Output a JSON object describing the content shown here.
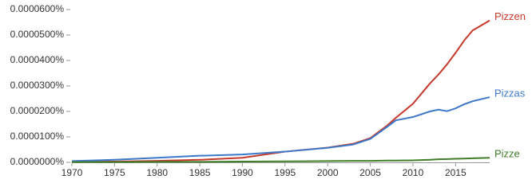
{
  "chart_data": {
    "type": "line",
    "x": [
      1970,
      1975,
      1980,
      1985,
      1990,
      1995,
      2000,
      2003,
      2005,
      2007,
      2008,
      2010,
      2012,
      2013,
      2014,
      2015,
      2016,
      2017,
      2019
    ],
    "series": [
      {
        "name": "Pizzen",
        "color": "#c5392c",
        "values": [
          2e-07,
          3e-07,
          6e-07,
          1e-06,
          1.8e-06,
          4.2e-06,
          5.8e-06,
          7.3e-06,
          9.5e-06,
          1.45e-05,
          1.75e-05,
          2.3e-05,
          3.1e-05,
          3.45e-05,
          3.85e-05,
          4.3e-05,
          4.78e-05,
          5.18e-05,
          5.57e-05
        ]
      },
      {
        "name": "Pizzas",
        "color": "#3d78c8",
        "values": [
          5e-07,
          1e-06,
          1.8e-06,
          2.6e-06,
          3.1e-06,
          4.2e-06,
          5.7e-06,
          7e-06,
          9.2e-06,
          1.4e-05,
          1.65e-05,
          1.78e-05,
          2e-05,
          2.07e-05,
          2.01e-05,
          2.12e-05,
          2.28e-05,
          2.4e-05,
          2.56e-05
        ]
      },
      {
        "name": "Pizze",
        "color": "#3f7d27",
        "values": [
          1e-07,
          1e-07,
          2e-07,
          2e-07,
          3e-07,
          4e-07,
          5e-07,
          6e-07,
          6e-07,
          7e-07,
          7e-07,
          8e-07,
          1e-06,
          1.2e-06,
          1.3e-06,
          1.4e-06,
          1.5e-06,
          1.6e-06,
          1.8e-06
        ]
      }
    ],
    "xlim": [
      1970,
      2019
    ],
    "xticks": [
      1970,
      1975,
      1980,
      1985,
      1990,
      1995,
      2000,
      2005,
      2010,
      2015
    ],
    "ylim": [
      0,
      6e-05
    ],
    "yticks": [
      {
        "value": 0,
        "label": "0.0000000%"
      },
      {
        "value": 1e-05,
        "label": "0.0000100%"
      },
      {
        "value": 2e-05,
        "label": "0.0000200%"
      },
      {
        "value": 3e-05,
        "label": "0.0000300%"
      },
      {
        "value": 4e-05,
        "label": "0.0000400%"
      },
      {
        "value": 5e-05,
        "label": "0.0000500%"
      },
      {
        "value": 6e-05,
        "label": "0.0000600%"
      }
    ]
  }
}
